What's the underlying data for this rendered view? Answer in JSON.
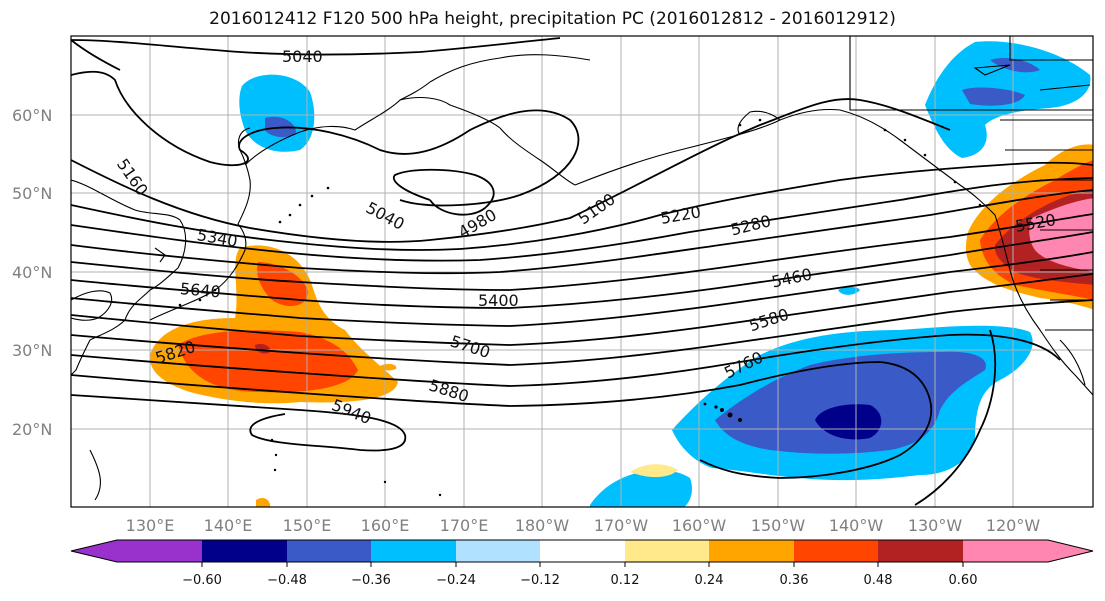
{
  "title": "2016012412 F120 500 hPa height, precipitation PC (2016012812 - 2016012912)",
  "colors": {
    "palette": [
      "#9932CC",
      "#00008B",
      "#3A5AC8",
      "#00BFFF",
      "#B0E2FF",
      "#FFFFFF",
      "#FFE98A",
      "#FFA500",
      "#FF4500",
      "#B22222",
      "#FF86B0"
    ],
    "contour": "#000000",
    "coast": "#000000",
    "grid": "#b0b0b0"
  },
  "map": {
    "lat_labels": [
      "60°N",
      "50°N",
      "40°N",
      "30°N",
      "20°N"
    ],
    "lon_labels": [
      "130°E",
      "140°E",
      "150°E",
      "160°E",
      "170°E",
      "180°W",
      "170°W",
      "160°W",
      "150°W",
      "140°W",
      "130°W",
      "120°W"
    ]
  },
  "contour_labels": [
    "5040",
    "5160",
    "5040",
    "4980",
    "5100",
    "5220",
    "5280",
    "5340",
    "5520",
    "5460",
    "5640",
    "5400",
    "5580",
    "5820",
    "5700",
    "5760",
    "5880",
    "5940"
  ],
  "colorbar": {
    "ticks": [
      "−0.60",
      "−0.48",
      "−0.36",
      "−0.24",
      "−0.12",
      "0.12",
      "0.24",
      "0.36",
      "0.48",
      "0.60"
    ]
  }
}
